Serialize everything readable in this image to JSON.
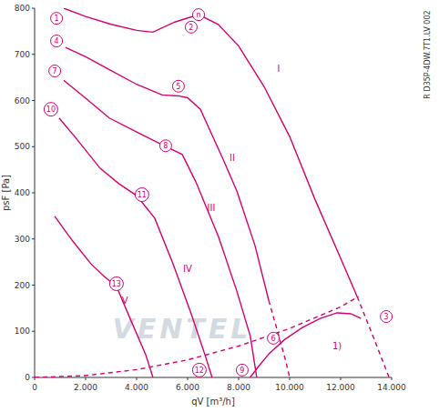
{
  "chart_data": {
    "type": "line",
    "xlabel": "qV [m³/h]",
    "ylabel": "psF [Pa]",
    "side_text": "R D35P-4DW.7T1.LV 002",
    "watermark": "VENTEL",
    "xlim": [
      0,
      14000
    ],
    "ylim": [
      0,
      800
    ],
    "xticks": [
      0,
      {
        "value": 2000,
        "label": "2.000"
      },
      {
        "value": 4000,
        "label": "4.000"
      },
      {
        "value": 6000,
        "label": "6.000"
      },
      {
        "value": 8000,
        "label": "8.000"
      },
      {
        "value": 10000,
        "label": "10.000"
      },
      {
        "value": 12000,
        "label": "12.000"
      },
      {
        "value": 14000,
        "label": "14.000"
      }
    ],
    "yticks": [
      0,
      100,
      200,
      300,
      400,
      500,
      600,
      700,
      800
    ],
    "grid": false,
    "series": [
      {
        "color": "#d4006f",
        "line_style": "solid",
        "x": [
          1140,
          2000,
          3000,
          4000,
          4640,
          5500,
          6430,
          7200,
          8000,
          9000,
          10000,
          11000,
          12000,
          12650
        ],
        "values": [
          800,
          782,
          765,
          752,
          748,
          770,
          786,
          765,
          718,
          630,
          522,
          385,
          258,
          175
        ]
      },
      {
        "color": "#d4006f",
        "line_style": "dashed",
        "x": [
          12650,
          13300,
          13900
        ],
        "values": [
          175,
          85,
          0
        ]
      },
      {
        "color": "#d4006f",
        "line_style": "solid",
        "x": [
          1210,
          2000,
          3000,
          4000,
          5000,
          5640,
          6000,
          6500,
          7390,
          7930,
          8640,
          9180
        ],
        "values": [
          715,
          695,
          665,
          635,
          612,
          610,
          606,
          581,
          473,
          404,
          286,
          167
        ]
      },
      {
        "color": "#d4006f",
        "line_style": "dashed",
        "x": [
          9180,
          9550,
          9850,
          10000
        ],
        "values": [
          167,
          95,
          35,
          0
        ]
      },
      {
        "color": "#d4006f",
        "line_style": "solid",
        "x": [
          1140,
          2000,
          2930,
          4000,
          5070,
          5790,
          6320,
          7210,
          7930,
          8460,
          8710
        ],
        "values": [
          644,
          605,
          562,
          532,
          502,
          483,
          424,
          305,
          187,
          89,
          0
        ]
      },
      {
        "color": "#d4006f",
        "line_style": "solid",
        "x": [
          960,
          1600,
          2570,
          3300,
          4000,
          4710,
          5430,
          6140,
          6680,
          6960
        ],
        "values": [
          562,
          520,
          453,
          420,
          394,
          345,
          246,
          138,
          49,
          0
        ]
      },
      {
        "color": "#d4006f",
        "line_style": "solid",
        "x": [
          790,
          1500,
          2210,
          2700,
          3210,
          3820,
          4360,
          4640
        ],
        "values": [
          349,
          295,
          246,
          220,
          197,
          118,
          49,
          0
        ]
      },
      {
        "color": "#d4006f",
        "line_style": "solid",
        "x": [
          8450,
          8800,
          9200,
          9800,
          10500,
          11200,
          11860,
          12400,
          12800
        ],
        "values": [
          0,
          25,
          52,
          82,
          108,
          128,
          140,
          138,
          128
        ]
      },
      {
        "color": "#d4006f",
        "line_style": "dashed",
        "x": [
          0,
          2000,
          4000,
          6000,
          8000,
          10000,
          12000,
          12700
        ],
        "values": [
          0,
          4,
          17,
          38,
          68,
          106,
          153,
          175
        ]
      }
    ],
    "annotations": [
      {
        "text": "1",
        "x": 860,
        "y": 778,
        "marker": "circle"
      },
      {
        "text": "2",
        "x": 6140,
        "y": 759,
        "marker": "circle"
      },
      {
        "text": "n",
        "x": 6430,
        "y": 786,
        "marker": "circle"
      },
      {
        "text": "3",
        "x": 13790,
        "y": 132,
        "marker": "circle"
      },
      {
        "text": "4",
        "x": 860,
        "y": 729,
        "marker": "circle"
      },
      {
        "text": "5",
        "x": 5640,
        "y": 631,
        "marker": "circle"
      },
      {
        "text": "6",
        "x": 9360,
        "y": 85,
        "marker": "circle"
      },
      {
        "text": "7",
        "x": 790,
        "y": 664,
        "marker": "circle"
      },
      {
        "text": "8",
        "x": 5140,
        "y": 502,
        "marker": "circle"
      },
      {
        "text": "9",
        "x": 8140,
        "y": 16,
        "marker": "circle"
      },
      {
        "text": "10",
        "x": 640,
        "y": 581,
        "marker": "circle"
      },
      {
        "text": "11",
        "x": 4210,
        "y": 396,
        "marker": "circle"
      },
      {
        "text": "12",
        "x": 6460,
        "y": 16,
        "marker": "circle"
      },
      {
        "text": "13",
        "x": 3210,
        "y": 203,
        "marker": "circle"
      },
      {
        "text": "I",
        "x": 9570,
        "y": 670
      },
      {
        "text": "II",
        "x": 7750,
        "y": 477
      },
      {
        "text": "III",
        "x": 6930,
        "y": 368
      },
      {
        "text": "IV",
        "x": 6000,
        "y": 236
      },
      {
        "text": "V",
        "x": 3540,
        "y": 167
      },
      {
        "text": "1)",
        "x": 11860,
        "y": 69
      }
    ]
  }
}
